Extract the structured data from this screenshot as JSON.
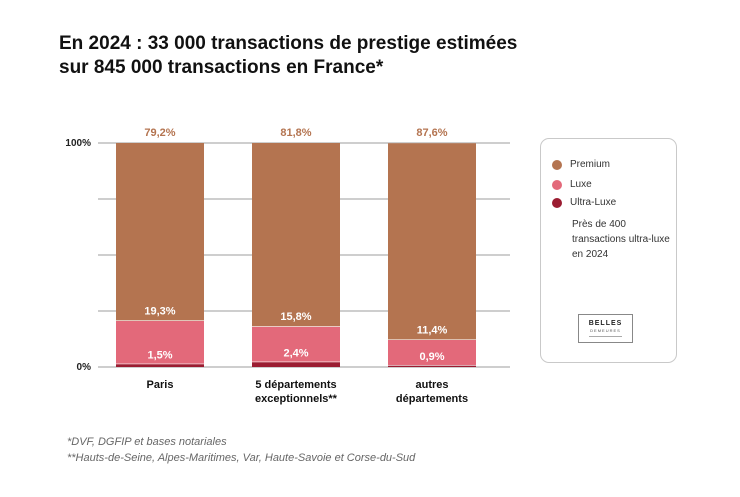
{
  "title_lines": [
    "En 2024 : 33 000 transactions de prestige estimées",
    "sur 845 000 transactions en France*"
  ],
  "chart_data": {
    "type": "bar",
    "stacked": true,
    "categories": [
      [
        "Paris"
      ],
      [
        "5 départements",
        "exceptionnels**"
      ],
      [
        "autres",
        "départements"
      ]
    ],
    "series": [
      {
        "name": "Ultra-Luxe",
        "color": "#9b1c31",
        "values": [
          1.5,
          2.4,
          0.9
        ],
        "labels": [
          "1,5%",
          "2,4%",
          "0,9%"
        ]
      },
      {
        "name": "Luxe",
        "color": "#e3697a",
        "values": [
          19.3,
          15.8,
          11.4
        ],
        "labels": [
          "19,3%",
          "15,8%",
          "11,4%"
        ]
      },
      {
        "name": "Premium",
        "color": "#b47450",
        "values": [
          79.2,
          81.8,
          87.6
        ],
        "labels": [
          "79,2%",
          "81,8%",
          "87,6%"
        ]
      }
    ],
    "yticks": [
      "0%",
      "100%"
    ],
    "ylim": [
      0,
      100
    ],
    "grid": true,
    "legend_position": "right"
  },
  "legend": {
    "items": [
      {
        "label": "Premium",
        "color": "#b47450"
      },
      {
        "label": "Luxe",
        "color": "#e3697a"
      },
      {
        "label": "Ultra-Luxe",
        "color": "#9b1c31"
      }
    ],
    "note": "Près de 400 transactions ultra-luxe en 2024",
    "logo": {
      "line1": "BELLES",
      "line2": "DEMEURES"
    }
  },
  "footnotes": [
    "*DVF, DGFIP et bases notariales",
    "**Hauts-de-Seine, Alpes-Maritimes, Var, Haute-Savoie et Corse-du-Sud"
  ]
}
